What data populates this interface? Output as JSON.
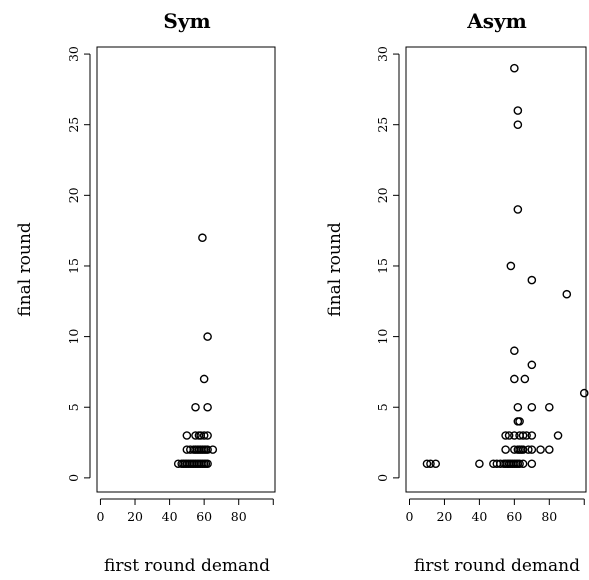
{
  "chart_data": [
    {
      "type": "scatter",
      "title": "Sym",
      "xlabel": "first round demand",
      "ylabel": "final round",
      "xlim": [
        -2,
        101
      ],
      "ylim": [
        -1,
        30.5
      ],
      "xticks": [
        0,
        20,
        40,
        60,
        80
      ],
      "yticks": [
        0,
        5,
        10,
        15,
        20,
        25,
        30
      ],
      "grid": false,
      "points": [
        [
          45,
          1
        ],
        [
          47,
          1
        ],
        [
          48,
          1
        ],
        [
          49,
          1
        ],
        [
          50,
          1
        ],
        [
          51,
          1
        ],
        [
          52,
          1
        ],
        [
          53,
          1
        ],
        [
          54,
          1
        ],
        [
          55,
          1
        ],
        [
          56,
          1
        ],
        [
          57,
          1
        ],
        [
          58,
          1
        ],
        [
          59,
          1
        ],
        [
          60,
          1
        ],
        [
          61,
          1
        ],
        [
          62,
          1
        ],
        [
          50,
          2
        ],
        [
          52,
          2
        ],
        [
          54,
          2
        ],
        [
          55,
          2
        ],
        [
          56,
          2
        ],
        [
          57,
          2
        ],
        [
          58,
          2
        ],
        [
          59,
          2
        ],
        [
          60,
          2
        ],
        [
          61,
          2
        ],
        [
          62,
          2
        ],
        [
          65,
          2
        ],
        [
          50,
          3
        ],
        [
          55,
          3
        ],
        [
          57,
          3
        ],
        [
          58,
          3
        ],
        [
          60,
          3
        ],
        [
          62,
          3
        ],
        [
          55,
          5
        ],
        [
          62,
          5
        ],
        [
          60,
          7
        ],
        [
          62,
          10
        ],
        [
          59,
          17
        ]
      ]
    },
    {
      "type": "scatter",
      "title": "Asym",
      "xlabel": "first round demand",
      "ylabel": "final round",
      "xlim": [
        -2,
        101
      ],
      "ylim": [
        -1,
        30.5
      ],
      "xticks": [
        0,
        20,
        40,
        60,
        80
      ],
      "yticks": [
        0,
        5,
        10,
        15,
        20,
        25,
        30
      ],
      "grid": false,
      "points": [
        [
          10,
          1
        ],
        [
          12,
          1
        ],
        [
          15,
          1
        ],
        [
          40,
          1
        ],
        [
          48,
          1
        ],
        [
          50,
          1
        ],
        [
          52,
          1
        ],
        [
          54,
          1
        ],
        [
          55,
          1
        ],
        [
          56,
          1
        ],
        [
          57,
          1
        ],
        [
          58,
          1
        ],
        [
          59,
          1
        ],
        [
          60,
          1
        ],
        [
          61,
          1
        ],
        [
          62,
          1
        ],
        [
          63,
          1
        ],
        [
          65,
          1
        ],
        [
          70,
          1
        ],
        [
          55,
          2
        ],
        [
          60,
          2
        ],
        [
          62,
          2
        ],
        [
          63,
          2
        ],
        [
          64,
          2
        ],
        [
          65,
          2
        ],
        [
          68,
          2
        ],
        [
          70,
          2
        ],
        [
          75,
          2
        ],
        [
          80,
          2
        ],
        [
          55,
          3
        ],
        [
          57,
          3
        ],
        [
          60,
          3
        ],
        [
          63,
          3
        ],
        [
          65,
          3
        ],
        [
          67,
          3
        ],
        [
          70,
          3
        ],
        [
          85,
          3
        ],
        [
          62,
          4
        ],
        [
          63,
          4
        ],
        [
          62,
          5
        ],
        [
          70,
          5
        ],
        [
          80,
          5
        ],
        [
          100,
          6
        ],
        [
          60,
          7
        ],
        [
          66,
          7
        ],
        [
          70,
          8
        ],
        [
          60,
          9
        ],
        [
          90,
          13
        ],
        [
          70,
          14
        ],
        [
          58,
          15
        ],
        [
          62,
          19
        ],
        [
          62,
          25
        ],
        [
          62,
          26
        ],
        [
          60,
          29
        ]
      ]
    }
  ]
}
